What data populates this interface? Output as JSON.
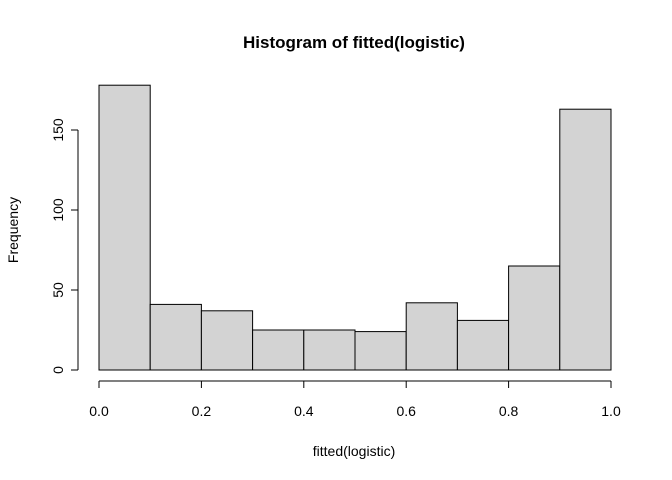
{
  "chart_data": {
    "type": "bar",
    "title": "Histogram of fitted(logistic)",
    "xlabel": "fitted(logistic)",
    "ylabel": "Frequency",
    "bins": [
      {
        "start": 0.0,
        "end": 0.1,
        "value": 178
      },
      {
        "start": 0.1,
        "end": 0.2,
        "value": 41
      },
      {
        "start": 0.2,
        "end": 0.3,
        "value": 37
      },
      {
        "start": 0.3,
        "end": 0.4,
        "value": 25
      },
      {
        "start": 0.4,
        "end": 0.5,
        "value": 25
      },
      {
        "start": 0.5,
        "end": 0.6,
        "value": 24
      },
      {
        "start": 0.6,
        "end": 0.7,
        "value": 42
      },
      {
        "start": 0.7,
        "end": 0.8,
        "value": 31
      },
      {
        "start": 0.8,
        "end": 0.9,
        "value": 65
      },
      {
        "start": 0.9,
        "end": 1.0,
        "value": 163
      }
    ],
    "xlim": [
      0.0,
      1.0
    ],
    "ylim": [
      0,
      178
    ],
    "x_ticks": [
      "0.0",
      "0.2",
      "0.4",
      "0.6",
      "0.8",
      "1.0"
    ],
    "y_ticks": [
      "0",
      "50",
      "100",
      "150"
    ],
    "bar_color": "#d3d3d3",
    "border_color": "#000000",
    "grid": false
  }
}
